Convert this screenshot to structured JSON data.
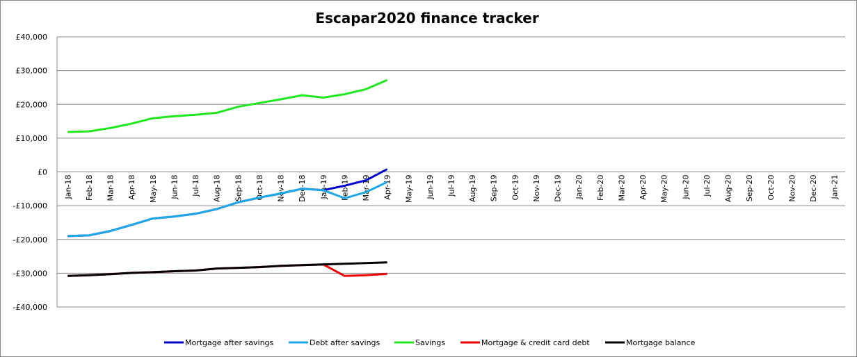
{
  "chart_data": {
    "type": "line",
    "title": "Escapar2020 finance tracker",
    "categories": [
      "Jan-18",
      "Feb-18",
      "Mar-18",
      "Apr-18",
      "May-18",
      "Jun-18",
      "Jul-18",
      "Aug-18",
      "Sep-18",
      "Oct-18",
      "Nov-18",
      "Dec-18",
      "Jan-19",
      "Feb-19",
      "Mar-19",
      "Apr-19",
      "May-19",
      "Jun-19",
      "Jul-19",
      "Aug-19",
      "Sep-19",
      "Oct-19",
      "Nov-19",
      "Dec-19",
      "Jan-20",
      "Feb-20",
      "Mar-20",
      "Apr-20",
      "May-20",
      "Jun-20",
      "Jul-20",
      "Aug-20",
      "Sep-20",
      "Oct-20",
      "Nov-20",
      "Dec-20",
      "Jan-21"
    ],
    "series": [
      {
        "name": "Mortgage after savings",
        "color": "#0000cc",
        "values": [
          -19000,
          -18800,
          -17500,
          -15700,
          -13800,
          -13200,
          -12400,
          -11000,
          -9000,
          -7600,
          -6400,
          -5000,
          -5400,
          -4100,
          -2500,
          800,
          null,
          null,
          null,
          null,
          null,
          null,
          null,
          null,
          null,
          null,
          null,
          null,
          null,
          null,
          null,
          null,
          null,
          null,
          null,
          null,
          null
        ]
      },
      {
        "name": "Debt after savings",
        "color": "#1ea9e6",
        "values": [
          -19000,
          -18800,
          -17500,
          -15700,
          -13800,
          -13200,
          -12400,
          -11000,
          -9000,
          -7600,
          -6400,
          -5000,
          -5400,
          -7800,
          -6000,
          -3000,
          null,
          null,
          null,
          null,
          null,
          null,
          null,
          null,
          null,
          null,
          null,
          null,
          null,
          null,
          null,
          null,
          null,
          null,
          null,
          null,
          null
        ]
      },
      {
        "name": "Savings",
        "color": "#22e622",
        "values": [
          11800,
          12000,
          13000,
          14300,
          15900,
          16500,
          16900,
          17500,
          19300,
          20400,
          21500,
          22700,
          22000,
          23000,
          24500,
          27200,
          null,
          null,
          null,
          null,
          null,
          null,
          null,
          null,
          null,
          null,
          null,
          null,
          null,
          null,
          null,
          null,
          null,
          null,
          null,
          null,
          null
        ]
      },
      {
        "name": "Mortgage & credit card debt",
        "color": "#ee0000",
        "values": [
          -30800,
          -30600,
          -30300,
          -29900,
          -29700,
          -29400,
          -29200,
          -28600,
          -28400,
          -28200,
          -27800,
          -27600,
          -27400,
          -30800,
          -30600,
          -30200,
          null,
          null,
          null,
          null,
          null,
          null,
          null,
          null,
          null,
          null,
          null,
          null,
          null,
          null,
          null,
          null,
          null,
          null,
          null,
          null,
          null
        ]
      },
      {
        "name": "Mortgage balance",
        "color": "#000000",
        "values": [
          -30800,
          -30600,
          -30300,
          -29900,
          -29700,
          -29400,
          -29200,
          -28600,
          -28400,
          -28200,
          -27800,
          -27600,
          -27400,
          -27200,
          -27000,
          -26800,
          null,
          null,
          null,
          null,
          null,
          null,
          null,
          null,
          null,
          null,
          null,
          null,
          null,
          null,
          null,
          null,
          null,
          null,
          null,
          null,
          null
        ]
      }
    ],
    "ylim": [
      -40000,
      40000
    ],
    "yticks": [
      {
        "value": -40000,
        "label": "-£40,000"
      },
      {
        "value": -30000,
        "label": "-£30,000"
      },
      {
        "value": -20000,
        "label": "-£20,000"
      },
      {
        "value": -10000,
        "label": "-£10,000"
      },
      {
        "value": 0,
        "label": "£0"
      },
      {
        "value": 10000,
        "label": "£10,000"
      },
      {
        "value": 20000,
        "label": "£20,000"
      },
      {
        "value": 30000,
        "label": "£30,000"
      },
      {
        "value": 40000,
        "label": "£40,000"
      }
    ],
    "grid": true,
    "legend": "bottom"
  }
}
